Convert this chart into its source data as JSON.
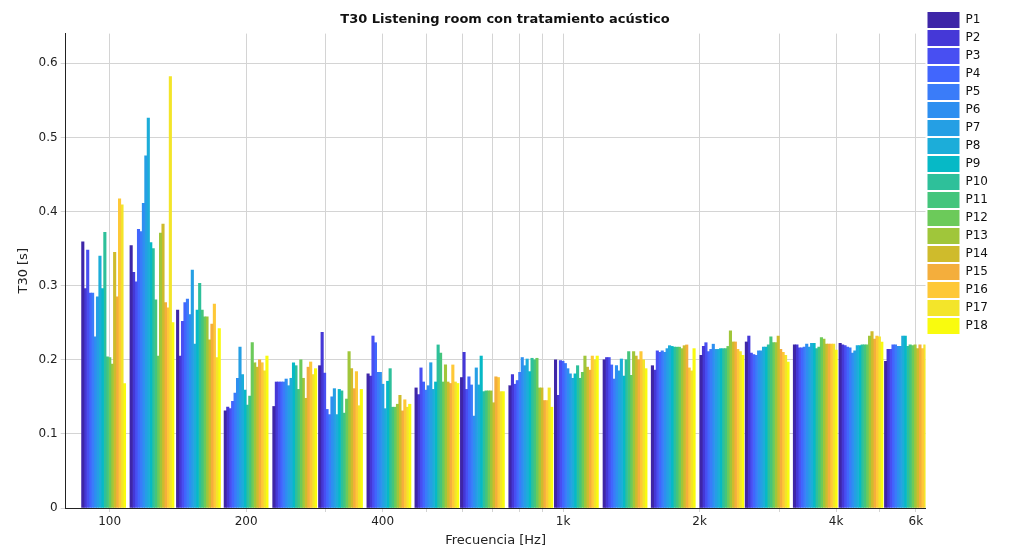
{
  "chart_data": {
    "type": "bar",
    "title": "T30 Listening room con tratamiento acústico",
    "xlabel": "Frecuencia [Hz]",
    "ylabel": "T30 [s]",
    "x": [
      97,
      124,
      157,
      200,
      256,
      323,
      413,
      527,
      664,
      849,
      1070,
      1370,
      1750,
      2240,
      2820,
      3600,
      4540,
      5720
    ],
    "log": "x",
    "xlim": [
      80,
      6300
    ],
    "xticks": [
      100,
      200,
      {
        "value": 300,
        "label": null
      },
      400,
      {
        "value": 500,
        "label": null
      },
      {
        "value": 600,
        "label": null
      },
      {
        "value": 700,
        "label": null
      },
      {
        "value": 800,
        "label": null
      },
      {
        "value": 900,
        "label": null
      },
      {
        "value": 1000,
        "label": "1k"
      },
      {
        "value": 2000,
        "label": "2k"
      },
      {
        "value": 3000,
        "label": null
      },
      {
        "value": 4000,
        "label": "4k"
      },
      {
        "value": 5000,
        "label": null
      },
      {
        "value": 6000,
        "label": "6k"
      }
    ],
    "ylim": [
      0,
      0.64
    ],
    "yticks": [
      0,
      0.1,
      0.2,
      0.3,
      0.4,
      0.5,
      0.6
    ],
    "grid": true,
    "legend": "right",
    "series": [
      {
        "name": "P1",
        "color": "#3e26a8",
        "values": [
          0.359,
          0.354,
          0.267,
          0.131,
          0.137,
          0.192,
          0.181,
          0.162,
          0.176,
          0.165,
          0.2,
          0.2,
          0.192,
          0.206,
          0.224,
          0.22,
          0.222,
          0.198
        ]
      },
      {
        "name": "P2",
        "color": "#4538d7",
        "values": [
          0.296,
          0.318,
          0.205,
          0.136,
          0.17,
          0.237,
          0.178,
          0.153,
          0.21,
          0.18,
          0.152,
          0.203,
          0.186,
          0.218,
          0.232,
          0.22,
          0.22,
          0.214
        ]
      },
      {
        "name": "P3",
        "color": "#484ff2",
        "values": [
          0.348,
          0.305,
          0.252,
          0.134,
          0.17,
          0.182,
          0.232,
          0.189,
          0.16,
          0.167,
          0.199,
          0.203,
          0.212,
          0.223,
          0.209,
          0.216,
          0.219,
          0.214
        ]
      },
      {
        "name": "P4",
        "color": "#4166fd",
        "values": [
          0.29,
          0.376,
          0.277,
          0.144,
          0.17,
          0.133,
          0.223,
          0.17,
          0.177,
          0.172,
          0.198,
          0.193,
          0.21,
          0.211,
          0.207,
          0.216,
          0.217,
          0.22
        ]
      },
      {
        "name": "P5",
        "color": "#3a7cf9",
        "values": [
          0.29,
          0.373,
          0.282,
          0.155,
          0.17,
          0.126,
          0.183,
          0.159,
          0.166,
          0.183,
          0.195,
          0.174,
          0.212,
          0.214,
          0.206,
          0.217,
          0.216,
          0.22
        ]
      },
      {
        "name": "P6",
        "color": "#2d8ff0",
        "values": [
          0.231,
          0.411,
          0.261,
          0.175,
          0.174,
          0.15,
          0.183,
          0.165,
          0.124,
          0.203,
          0.188,
          0.192,
          0.21,
          0.221,
          0.212,
          0.221,
          0.209,
          0.218
        ]
      },
      {
        "name": "P7",
        "color": "#259fe4",
        "values": [
          0.285,
          0.475,
          0.321,
          0.217,
          0.165,
          0.161,
          0.167,
          0.196,
          0.189,
          0.192,
          0.181,
          0.185,
          0.215,
          0.214,
          0.212,
          0.217,
          0.212,
          0.218
        ]
      },
      {
        "name": "P8",
        "color": "#1cadd9",
        "values": [
          0.34,
          0.526,
          0.221,
          0.18,
          0.175,
          0.126,
          0.134,
          0.16,
          0.166,
          0.201,
          0.175,
          0.201,
          0.219,
          0.214,
          0.217,
          0.222,
          0.219,
          0.232
        ]
      },
      {
        "name": "P9",
        "color": "#06b9c6",
        "values": [
          0.296,
          0.358,
          0.267,
          0.159,
          0.196,
          0.16,
          0.171,
          0.17,
          0.205,
          0.184,
          0.181,
          0.178,
          0.218,
          0.215,
          0.217,
          0.222,
          0.219,
          0.232
        ]
      },
      {
        "name": "P10",
        "color": "#2ec09a",
        "values": [
          0.372,
          0.35,
          0.303,
          0.139,
          0.192,
          0.158,
          0.188,
          0.22,
          0.157,
          0.202,
          0.192,
          0.2,
          0.217,
          0.215,
          0.22,
          0.215,
          0.22,
          0.218
        ]
      },
      {
        "name": "P11",
        "color": "#44c57c",
        "values": [
          0.204,
          0.281,
          0.267,
          0.151,
          0.16,
          0.128,
          0.136,
          0.209,
          0.158,
          0.2,
          0.175,
          0.211,
          0.217,
          0.215,
          0.231,
          0.217,
          0.22,
          0.22
        ]
      },
      {
        "name": "P12",
        "color": "#6cca5a",
        "values": [
          0.203,
          0.205,
          0.258,
          0.223,
          0.2,
          0.147,
          0.136,
          0.17,
          0.158,
          0.202,
          0.183,
          0.179,
          0.217,
          0.218,
          0.223,
          0.23,
          0.22,
          0.219
        ]
      },
      {
        "name": "P13",
        "color": "#a0c63a",
        "values": [
          0.194,
          0.371,
          0.258,
          0.196,
          0.175,
          0.211,
          0.14,
          0.193,
          0.158,
          0.162,
          0.205,
          0.211,
          0.215,
          0.239,
          0.223,
          0.228,
          0.232,
          0.22
        ]
      },
      {
        "name": "P14",
        "color": "#cfbb2c",
        "values": [
          0.345,
          0.383,
          0.227,
          0.19,
          0.148,
          0.188,
          0.152,
          0.17,
          0.142,
          0.162,
          0.19,
          0.205,
          0.219,
          0.224,
          0.232,
          0.221,
          0.238,
          0.215
        ]
      },
      {
        "name": "P15",
        "color": "#f4ae3c",
        "values": [
          0.285,
          0.277,
          0.248,
          0.2,
          0.19,
          0.161,
          0.131,
          0.168,
          0.177,
          0.145,
          0.186,
          0.2,
          0.22,
          0.224,
          0.214,
          0.221,
          0.228,
          0.22
        ]
      },
      {
        "name": "P16",
        "color": "#fec837",
        "values": [
          0.417,
          0.27,
          0.275,
          0.196,
          0.197,
          0.184,
          0.146,
          0.193,
          0.176,
          0.145,
          0.205,
          0.211,
          0.189,
          0.214,
          0.21,
          0.221,
          0.232,
          0.215
        ]
      },
      {
        "name": "P17",
        "color": "#f3e52a",
        "values": [
          0.409,
          0.582,
          0.203,
          0.185,
          0.18,
          0.138,
          0.136,
          0.17,
          0.157,
          0.162,
          0.2,
          0.2,
          0.185,
          0.211,
          0.206,
          0.221,
          0.231,
          0.22
        ]
      },
      {
        "name": "P18",
        "color": "#f9fb0e",
        "values": [
          0.168,
          0.25,
          0.242,
          0.205,
          0.188,
          0.16,
          0.14,
          0.168,
          0.157,
          0.136,
          0.205,
          0.188,
          0.215,
          0.206,
          0.197,
          0.213,
          0.224,
          0.219
        ]
      }
    ]
  }
}
